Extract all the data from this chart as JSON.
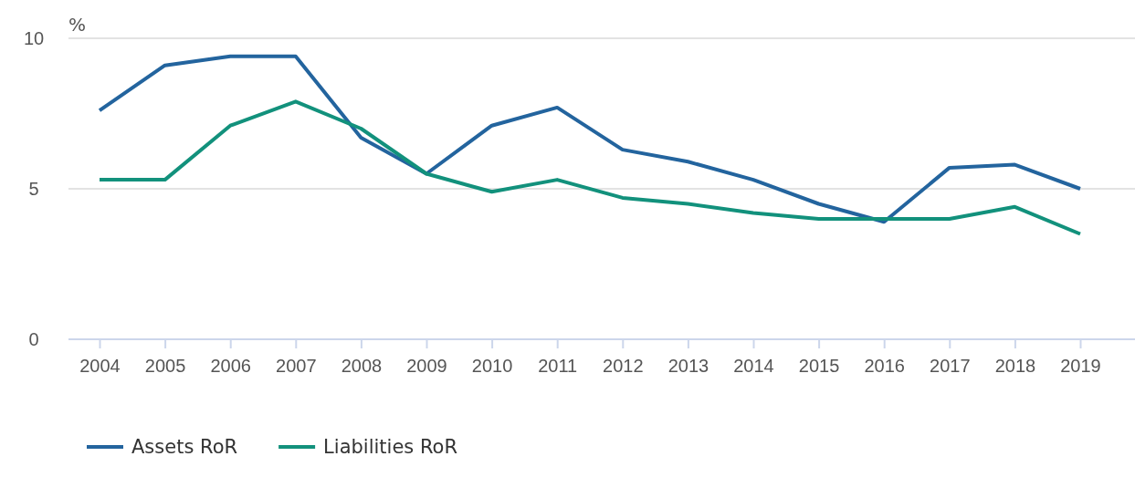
{
  "chart_data": {
    "type": "line",
    "ylabel": "%",
    "categories": [
      "2004",
      "2005",
      "2006",
      "2007",
      "2008",
      "2009",
      "2010",
      "2011",
      "2012",
      "2013",
      "2014",
      "2015",
      "2016",
      "2017",
      "2018",
      "2019"
    ],
    "series": [
      {
        "name": "Assets RoR",
        "color": "#23649e",
        "values": [
          7.6,
          9.1,
          9.4,
          9.4,
          6.7,
          5.5,
          7.1,
          7.7,
          6.3,
          5.9,
          5.3,
          4.5,
          3.9,
          5.7,
          5.8,
          5.0
        ]
      },
      {
        "name": "Liabilities RoR",
        "color": "#12917c",
        "values": [
          5.3,
          5.3,
          7.1,
          7.9,
          7.0,
          5.5,
          4.9,
          5.3,
          4.7,
          4.5,
          4.2,
          4.0,
          4.0,
          4.0,
          4.4,
          3.5
        ]
      }
    ],
    "ylim": [
      0,
      10
    ],
    "yticks": [
      0,
      5,
      10
    ],
    "grid": "y",
    "legend": "bottom",
    "line_style": "solid",
    "marker": "none"
  }
}
